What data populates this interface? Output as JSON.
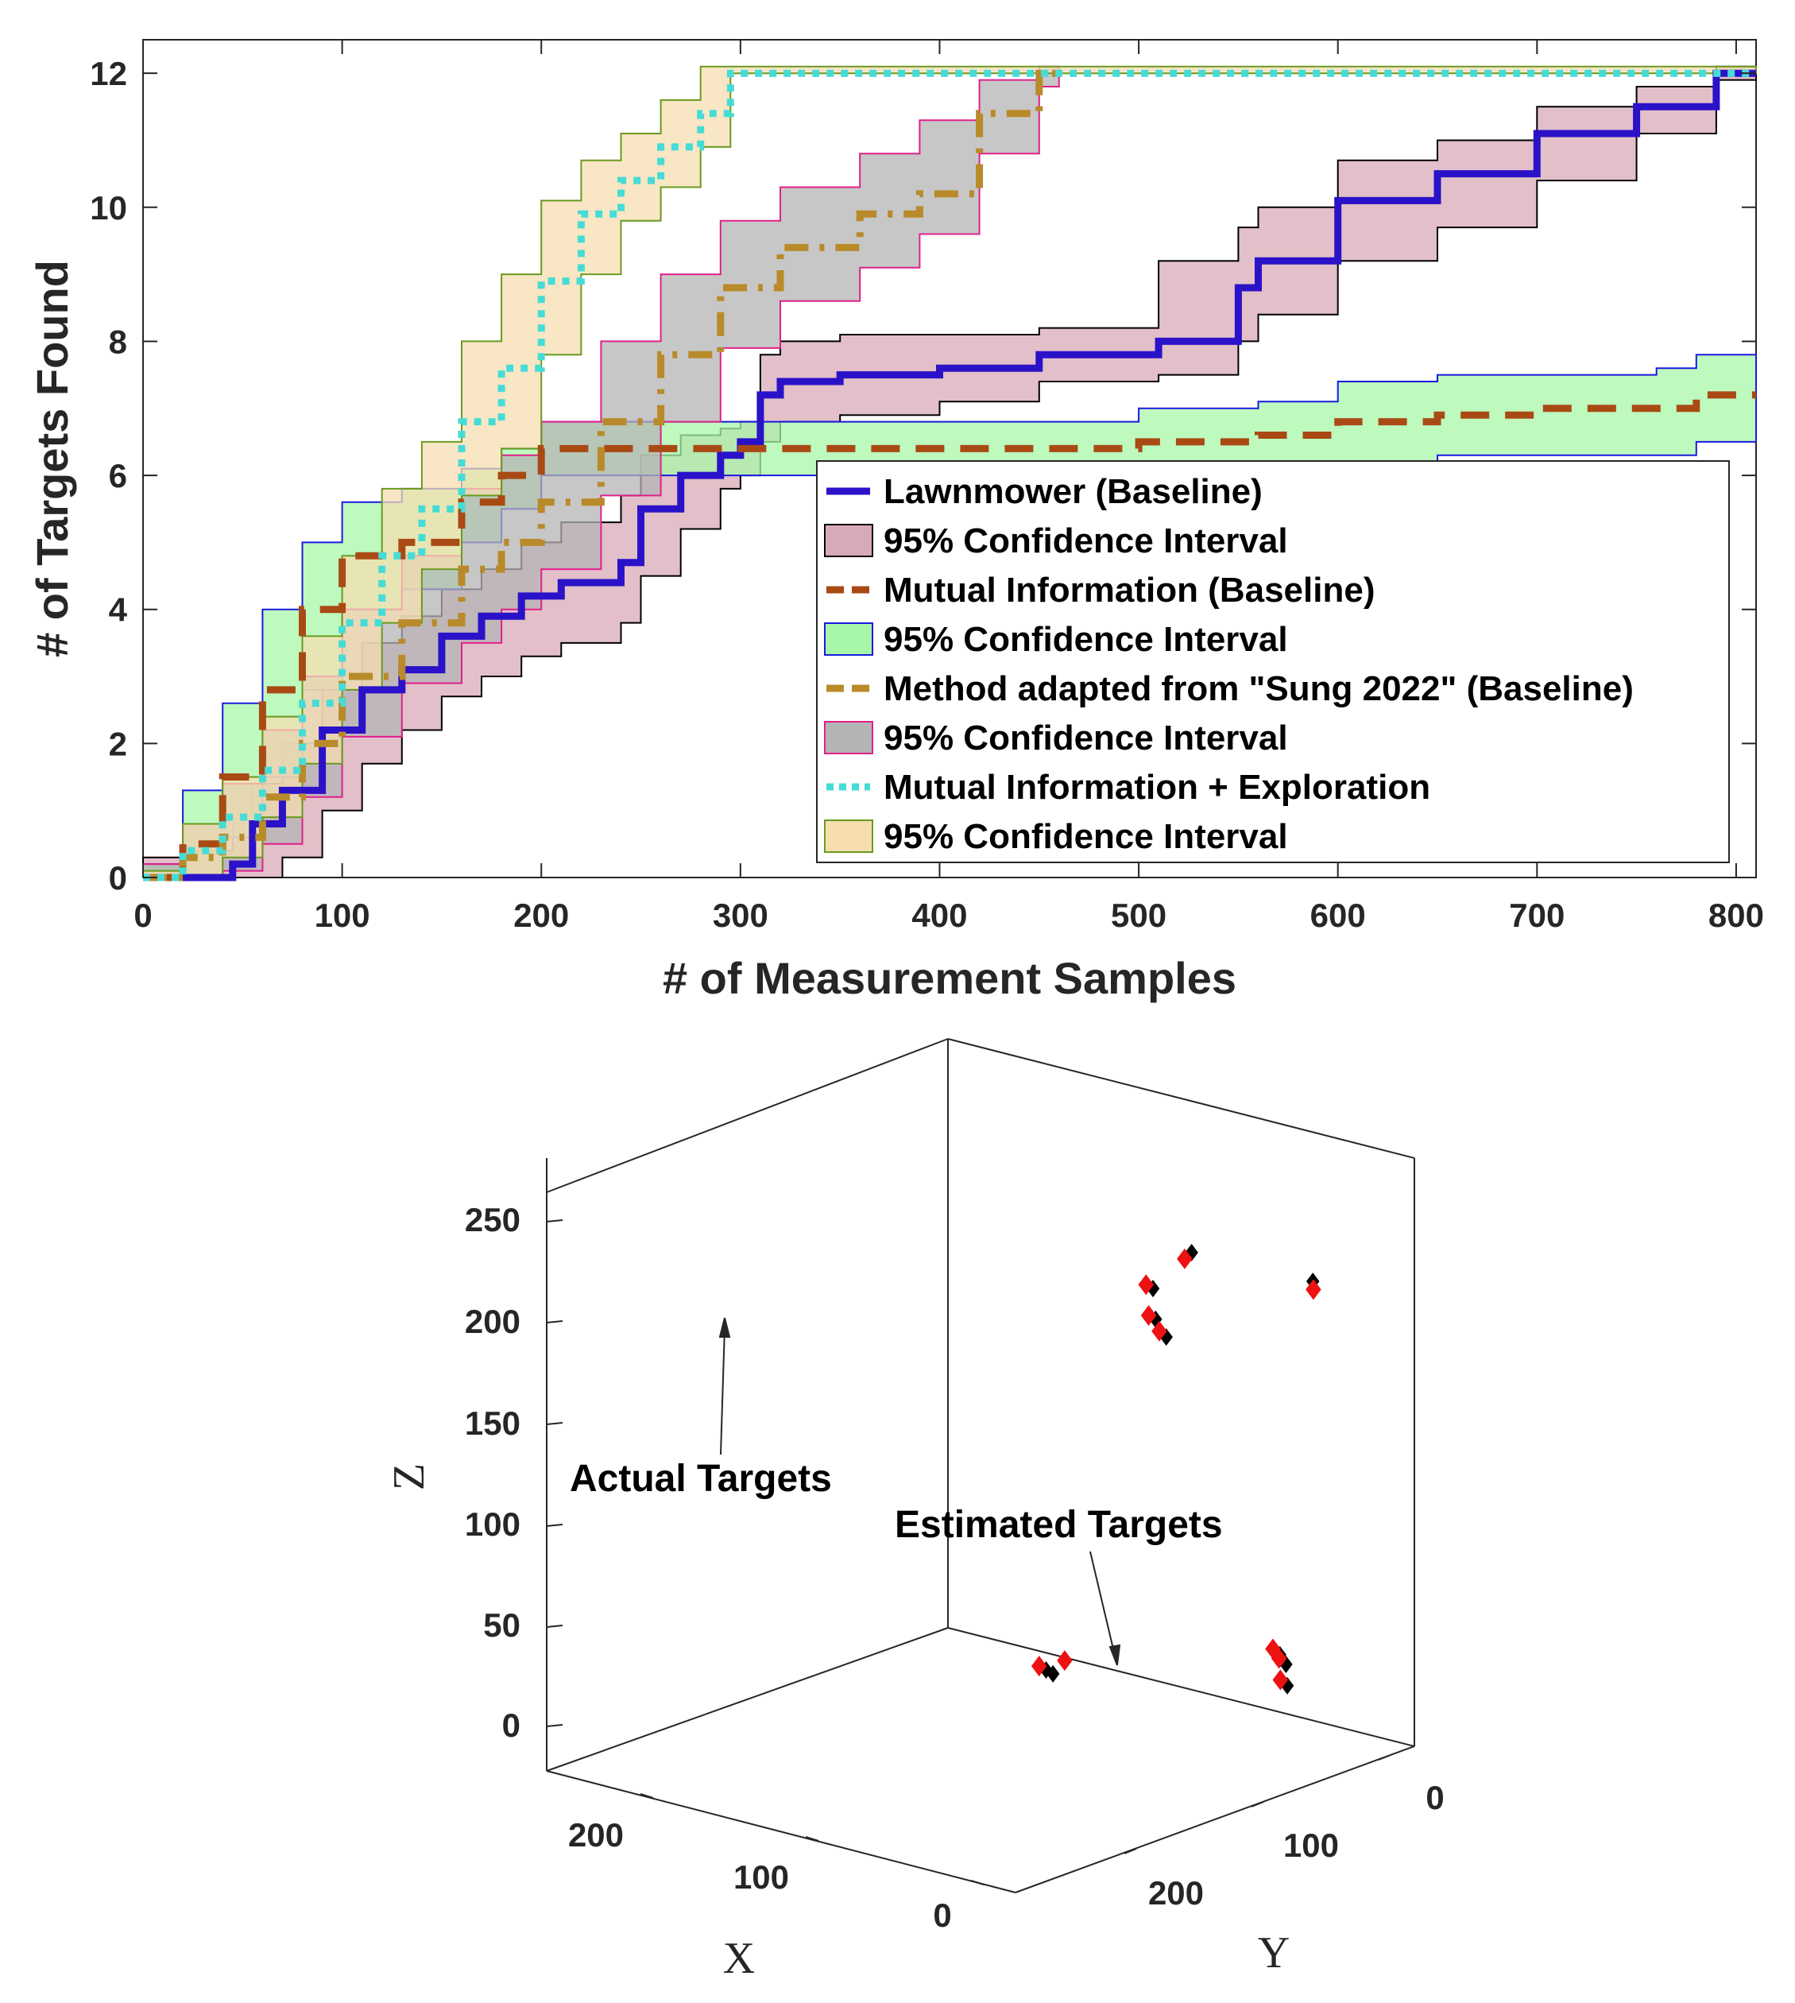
{
  "colors": {
    "lawnmower": "#2a12c8",
    "lawnmower_ci_fill": "#d8a9b7",
    "lawnmower_ci_edge": "#000000",
    "mi": "#a94a14",
    "mi_ci_fill": "#a8f7a8",
    "mi_ci_edge": "#1a1ae0",
    "sung": "#b88a2a",
    "sung_ci_fill": "#b4b4b4",
    "sung_ci_edge": "#e0208c",
    "mie": "#46dcd6",
    "mie_ci_fill": "#f6deb0",
    "mie_ci_edge": "#6a9a1e",
    "actual_marker": "#000000",
    "estimated_marker": "#ee1111"
  },
  "chart_data": [
    {
      "type": "line",
      "xlabel": "# of Measurement Samples",
      "ylabel": "# of Targets Found",
      "xlim": [
        0,
        810
      ],
      "ylim": [
        0,
        12.5
      ],
      "xticks": [
        "0",
        "100",
        "200",
        "300",
        "400",
        "500",
        "600",
        "700",
        "800"
      ],
      "yticks": [
        "0",
        "2",
        "4",
        "6",
        "8",
        "10",
        "12"
      ],
      "legend_position": "lower-right",
      "legend": [
        "Lawnmower (Baseline)",
        "95% Confidence Interval",
        "Mutual Information (Baseline)",
        "95% Confidence Interval",
        "Method adapted from \"Sung 2022\" (Baseline)",
        "95% Confidence Interval",
        "Mutual Information + Exploration",
        "95% Confidence Interval"
      ],
      "series": [
        {
          "name": "Lawnmower (Baseline)",
          "x": [
            0,
            20,
            45,
            55,
            70,
            90,
            110,
            130,
            150,
            170,
            190,
            210,
            240,
            250,
            270,
            290,
            300,
            310,
            320,
            350,
            400,
            450,
            510,
            550,
            560,
            600,
            650,
            700,
            750,
            790,
            810
          ],
          "y": [
            0,
            0,
            0.2,
            0.8,
            1.3,
            2.2,
            2.8,
            3.1,
            3.6,
            3.9,
            4.2,
            4.4,
            4.7,
            5.5,
            6.0,
            6.3,
            6.5,
            7.2,
            7.4,
            7.5,
            7.6,
            7.8,
            8.0,
            8.8,
            9.2,
            10.1,
            10.5,
            11.1,
            11.5,
            12.0,
            12.0
          ],
          "ci_upper": [
            0.3,
            0.4,
            0.8,
            1.4,
            2.0,
            2.8,
            3.5,
            3.9,
            4.3,
            4.6,
            5.0,
            5.3,
            5.7,
            6.3,
            6.6,
            6.7,
            6.8,
            7.8,
            8.0,
            8.1,
            8.1,
            8.2,
            9.2,
            9.7,
            10.0,
            10.7,
            11.0,
            11.5,
            11.8,
            12.1,
            12.1
          ],
          "ci_lower": [
            0,
            0,
            0,
            0,
            0.3,
            1.0,
            1.7,
            2.2,
            2.7,
            3.0,
            3.3,
            3.5,
            3.8,
            4.5,
            5.2,
            5.8,
            6.0,
            6.5,
            6.8,
            6.9,
            7.1,
            7.4,
            7.5,
            8.0,
            8.4,
            9.2,
            9.7,
            10.4,
            11.1,
            11.9,
            12.0
          ]
        },
        {
          "name": "Mutual Information (Baseline)",
          "x": [
            0,
            20,
            40,
            60,
            80,
            100,
            130,
            160,
            180,
            200,
            240,
            300,
            400,
            500,
            560,
            600,
            650,
            700,
            760,
            780,
            810
          ],
          "y": [
            0,
            0.5,
            1.5,
            2.8,
            4.0,
            4.8,
            5.0,
            5.6,
            6.0,
            6.4,
            6.4,
            6.4,
            6.4,
            6.5,
            6.6,
            6.8,
            6.9,
            7.0,
            7.0,
            7.2,
            7.2
          ],
          "ci_upper": [
            0.2,
            1.3,
            2.6,
            4.0,
            5.0,
            5.6,
            5.8,
            6.1,
            6.4,
            6.8,
            6.8,
            6.8,
            6.8,
            7.0,
            7.1,
            7.4,
            7.5,
            7.5,
            7.6,
            7.8,
            7.8
          ],
          "ci_lower": [
            0,
            0,
            0.6,
            1.5,
            2.8,
            4.0,
            4.3,
            5.0,
            5.5,
            6.0,
            6.0,
            6.0,
            6.0,
            6.0,
            6.1,
            6.2,
            6.3,
            6.3,
            6.3,
            6.5,
            6.5
          ]
        },
        {
          "name": "Method adapted from \"Sung 2022\" (Baseline)",
          "x": [
            0,
            20,
            40,
            60,
            80,
            100,
            130,
            160,
            180,
            200,
            230,
            260,
            290,
            320,
            360,
            390,
            420,
            450,
            460
          ],
          "y": [
            0,
            0.3,
            0.6,
            1.2,
            2.0,
            3.0,
            3.8,
            4.6,
            5.0,
            5.6,
            6.8,
            7.8,
            8.8,
            9.4,
            9.9,
            10.2,
            11.4,
            12.0,
            12.0
          ],
          "ci_upper": [
            0.2,
            0.8,
            1.4,
            2.2,
            3.0,
            4.0,
            4.8,
            5.8,
            6.3,
            6.8,
            8.0,
            9.0,
            9.8,
            10.3,
            10.8,
            11.3,
            11.9,
            12.1,
            12.1
          ],
          "ci_lower": [
            0,
            0,
            0.1,
            0.5,
            1.2,
            2.1,
            2.9,
            3.5,
            4.0,
            4.6,
            5.7,
            6.8,
            7.9,
            8.6,
            9.1,
            9.6,
            10.8,
            11.8,
            12.0
          ]
        },
        {
          "name": "Mutual Information + Exploration",
          "x": [
            0,
            20,
            40,
            60,
            80,
            100,
            120,
            140,
            160,
            180,
            200,
            220,
            240,
            260,
            280,
            295,
            810
          ],
          "y": [
            0,
            0.4,
            0.9,
            1.6,
            2.6,
            3.8,
            4.8,
            5.5,
            6.8,
            7.6,
            8.9,
            9.9,
            10.4,
            10.9,
            11.4,
            12.0,
            12.0
          ],
          "ci_upper": [
            0.1,
            0.8,
            1.5,
            2.4,
            3.6,
            4.8,
            5.8,
            6.5,
            8.0,
            9.0,
            10.1,
            10.7,
            11.1,
            11.6,
            12.1,
            12.1,
            12.1
          ],
          "ci_lower": [
            0,
            0,
            0.3,
            0.9,
            1.7,
            2.8,
            3.8,
            4.6,
            5.7,
            6.4,
            7.8,
            9.0,
            9.8,
            10.3,
            10.9,
            12.0,
            12.0
          ]
        }
      ]
    },
    {
      "type": "scatter",
      "title": "",
      "xlabel": "X",
      "ylabel": "Y",
      "zlabel": "Z",
      "xticks": [
        "0",
        "100",
        "200"
      ],
      "yticks": [
        "0",
        "100",
        "200"
      ],
      "zticks": [
        "0",
        "50",
        "100",
        "150",
        "200",
        "250"
      ],
      "series": [
        {
          "name": "Actual Targets",
          "points_xyz": [
            [
              40,
              230,
              236
            ],
            [
              40,
              165,
              235
            ],
            [
              35,
              140,
              210
            ],
            [
              45,
              150,
              200
            ],
            [
              50,
              160,
              195
            ],
            [
              80,
              250,
              63
            ],
            [
              78,
              245,
              66
            ],
            [
              85,
              255,
              55
            ],
            [
              90,
              130,
              35
            ],
            [
              88,
              132,
              33
            ]
          ]
        },
        {
          "name": "Estimated Targets",
          "points_xyz": [
            [
              42,
              232,
              233
            ],
            [
              42,
              163,
              232
            ],
            [
              37,
              138,
              212
            ],
            [
              47,
              148,
              202
            ],
            [
              52,
              158,
              198
            ],
            [
              82,
              248,
              66
            ],
            [
              80,
              243,
              69
            ],
            [
              87,
              253,
              58
            ],
            [
              92,
              128,
              37
            ],
            [
              90,
              140,
              42
            ]
          ]
        }
      ],
      "annotations": [
        "Actual Targets",
        "Estimated Targets"
      ]
    }
  ]
}
